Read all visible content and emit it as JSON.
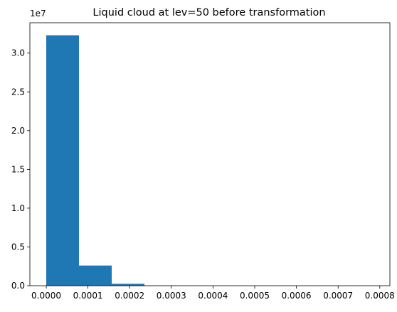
{
  "chart_data": {
    "type": "bar",
    "title": "Liquid cloud at lev=50 before transformation",
    "xlabel": "",
    "ylabel": "",
    "y_offset_text": "1e7",
    "bins": [
      {
        "x0": 0.0,
        "x1": 7.85e-05,
        "count": 32300000
      },
      {
        "x0": 7.85e-05,
        "x1": 0.000157,
        "count": 2600000
      },
      {
        "x0": 0.000157,
        "x1": 0.0002355,
        "count": 250000
      },
      {
        "x0": 0.0002355,
        "x1": 0.000314,
        "count": 20000
      },
      {
        "x0": 0.000314,
        "x1": 0.0003925,
        "count": 2000
      },
      {
        "x0": 0.0003925,
        "x1": 0.000471,
        "count": 300
      },
      {
        "x0": 0.000471,
        "x1": 0.0005495,
        "count": 50
      },
      {
        "x0": 0.0005495,
        "x1": 0.000628,
        "count": 10
      },
      {
        "x0": 0.000628,
        "x1": 0.0007065,
        "count": 3
      },
      {
        "x0": 0.0007065,
        "x1": 0.000785,
        "count": 1
      }
    ],
    "xlim": [
      -3.925e-05,
      0.00082425
    ],
    "ylim": [
      0,
      33915000
    ],
    "xticks": [
      {
        "value": 0.0,
        "label": "0.0000"
      },
      {
        "value": 0.0001,
        "label": "0.0001"
      },
      {
        "value": 0.0002,
        "label": "0.0002"
      },
      {
        "value": 0.0003,
        "label": "0.0003"
      },
      {
        "value": 0.0004,
        "label": "0.0004"
      },
      {
        "value": 0.0005,
        "label": "0.0005"
      },
      {
        "value": 0.0006,
        "label": "0.0006"
      },
      {
        "value": 0.0007,
        "label": "0.0007"
      },
      {
        "value": 0.0008,
        "label": "0.0008"
      }
    ],
    "yticks": [
      {
        "value": 0,
        "label": "0.0"
      },
      {
        "value": 5000000,
        "label": "0.5"
      },
      {
        "value": 10000000,
        "label": "1.0"
      },
      {
        "value": 15000000,
        "label": "1.5"
      },
      {
        "value": 20000000,
        "label": "2.0"
      },
      {
        "value": 25000000,
        "label": "2.5"
      },
      {
        "value": 30000000,
        "label": "3.0"
      }
    ],
    "grid": false,
    "legend": "none",
    "bar_color": "#1f77b4"
  }
}
